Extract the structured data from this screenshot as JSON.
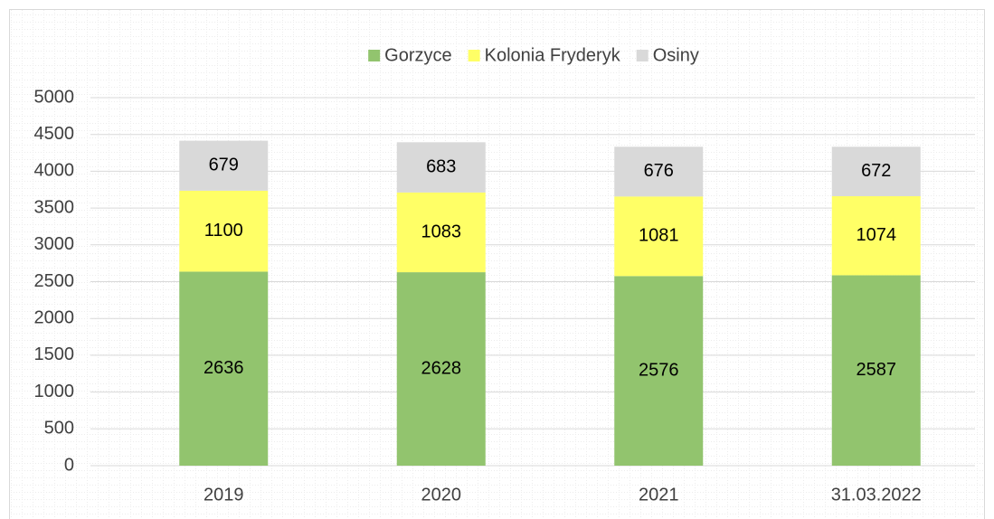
{
  "chart_data": {
    "type": "bar",
    "stacked": true,
    "categories": [
      "2019",
      "2020",
      "2021",
      "31.03.2022"
    ],
    "series": [
      {
        "name": "Gorzyce",
        "color": "#92c46e",
        "values": [
          2636,
          2628,
          2576,
          2587
        ]
      },
      {
        "name": "Kolonia Fryderyk",
        "color": "#ffff66",
        "values": [
          1100,
          1083,
          1081,
          1074
        ]
      },
      {
        "name": "Osiny",
        "color": "#d9d9d9",
        "values": [
          679,
          683,
          676,
          672
        ]
      }
    ],
    "ylim": [
      0,
      5000
    ],
    "yticks": [
      0,
      500,
      1000,
      1500,
      2000,
      2500,
      3000,
      3500,
      4000,
      4500,
      5000
    ],
    "grid": true,
    "legend": "top"
  }
}
